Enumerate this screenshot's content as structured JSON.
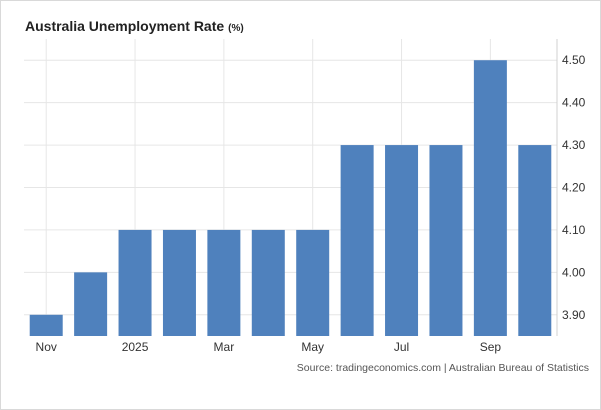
{
  "chart_data": {
    "type": "bar",
    "title": "Australia Unemployment Rate",
    "title_unit": "(%)",
    "source": "Source: tradingeconomics.com | Australian Bureau of Statistics",
    "values": [
      3.9,
      4.0,
      4.1,
      4.1,
      4.1,
      4.1,
      4.1,
      4.3,
      4.3,
      4.3,
      4.5,
      4.3
    ],
    "x_tick_labels": [
      {
        "label": "Nov",
        "index": 0
      },
      {
        "label": "2025",
        "index": 2
      },
      {
        "label": "Mar",
        "index": 4
      },
      {
        "label": "May",
        "index": 6
      },
      {
        "label": "Jul",
        "index": 8
      },
      {
        "label": "Sep",
        "index": 10
      }
    ],
    "y_ticks": [
      "3.90",
      "4.00",
      "4.10",
      "4.20",
      "4.30",
      "4.40",
      "4.50"
    ],
    "ylim": [
      3.85,
      4.55
    ],
    "y_axis_side": "right",
    "grid": true,
    "bar_color": "#4f81bd",
    "grid_color": "#e6e6e6"
  }
}
